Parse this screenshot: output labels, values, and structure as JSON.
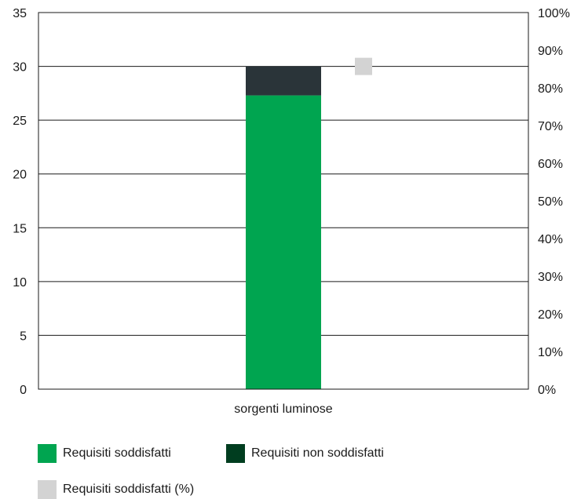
{
  "chart_data": {
    "type": "bar",
    "stacked": true,
    "categories": [
      "sorgenti luminose"
    ],
    "series": [
      {
        "name": "Requisiti soddisfatti",
        "values": [
          27.3
        ],
        "axis": "left",
        "color": "#00a550"
      },
      {
        "name": "Requisiti non soddisfatti",
        "values": [
          2.7
        ],
        "axis": "left",
        "color": "#2a3439"
      },
      {
        "name": "Requisiti soddisfatti (%)",
        "values": [
          85.7
        ],
        "axis": "right",
        "color": "#d3d3d3",
        "marker": "square"
      }
    ],
    "left_axis": {
      "range": [
        0,
        35
      ],
      "ticks": [
        "0",
        "5",
        "10",
        "15",
        "20",
        "25",
        "30",
        "35"
      ]
    },
    "right_axis": {
      "range": [
        0,
        100
      ],
      "ticks": [
        "0%",
        "10%",
        "20%",
        "30%",
        "40%",
        "50%",
        "60%",
        "70%",
        "80%",
        "90%",
        "100%"
      ]
    },
    "grid": "horizontal",
    "legend_position": "bottom-left"
  },
  "legend": [
    {
      "label": "Requisiti soddisfatti",
      "color": "#00a550"
    },
    {
      "label": "Requisiti non soddisfatti",
      "color": "#003d1f"
    },
    {
      "label": "Requisiti soddisfatti (%)",
      "color": "#d3d3d3"
    }
  ]
}
